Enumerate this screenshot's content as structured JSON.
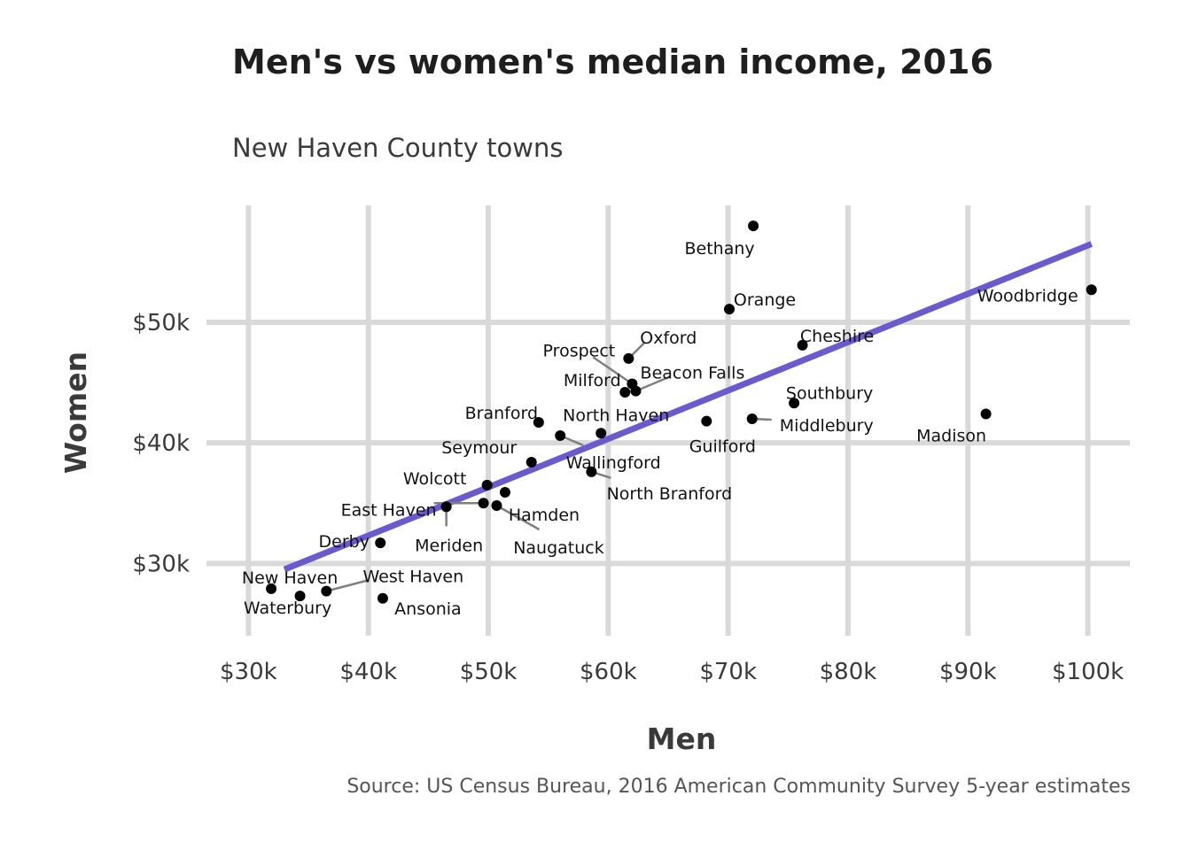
{
  "chart_data": {
    "type": "scatter",
    "title": "Men's vs women's median income, 2016",
    "subtitle": "New Haven County towns",
    "caption": "Source: US Census Bureau, 2016 American Community Survey 5-year estimates",
    "xlabel": "Men",
    "ylabel": "Women",
    "xlim": [
      26500,
      103500
    ],
    "ylim": [
      24000,
      59700
    ],
    "x_ticks": [
      {
        "value": 30000,
        "label": "$30k"
      },
      {
        "value": 40000,
        "label": "$40k"
      },
      {
        "value": 50000,
        "label": "$50k"
      },
      {
        "value": 60000,
        "label": "$60k"
      },
      {
        "value": 70000,
        "label": "$70k"
      },
      {
        "value": 80000,
        "label": "$80k"
      },
      {
        "value": 90000,
        "label": "$90k"
      },
      {
        "value": 100000,
        "label": "$100k"
      }
    ],
    "y_ticks": [
      {
        "value": 30000,
        "label": "$30k"
      },
      {
        "value": 40000,
        "label": "$40k"
      },
      {
        "value": 50000,
        "label": "$50k"
      }
    ],
    "grid": true,
    "trend_line": {
      "color": "#6a5acd",
      "x": [
        33000,
        100300
      ],
      "y": [
        29500,
        56500
      ]
    },
    "points": [
      {
        "name": "Bethany",
        "x": 72100,
        "y": 58000
      },
      {
        "name": "Woodbridge",
        "x": 100300,
        "y": 52700
      },
      {
        "name": "Orange",
        "x": 70100,
        "y": 51100
      },
      {
        "name": "Cheshire",
        "x": 76200,
        "y": 48100
      },
      {
        "name": "Oxford",
        "x": 61700,
        "y": 47000
      },
      {
        "name": "Beacon Falls",
        "x": 62300,
        "y": 44300
      },
      {
        "name": "Prospect",
        "x": 62000,
        "y": 44900
      },
      {
        "name": "Milford",
        "x": 61400,
        "y": 44200
      },
      {
        "name": "Southbury",
        "x": 75500,
        "y": 43300
      },
      {
        "name": "Madison",
        "x": 91500,
        "y": 42400
      },
      {
        "name": "Middlebury",
        "x": 72000,
        "y": 42000
      },
      {
        "name": "Guilford",
        "x": 68200,
        "y": 41800
      },
      {
        "name": "Branford",
        "x": 54200,
        "y": 41700
      },
      {
        "name": "North Haven",
        "x": 59400,
        "y": 40800
      },
      {
        "name": "Wallingford",
        "x": 56000,
        "y": 40600
      },
      {
        "name": "Seymour",
        "x": 53600,
        "y": 38400
      },
      {
        "name": "North Branford",
        "x": 58600,
        "y": 37600
      },
      {
        "name": "Wolcott",
        "x": 49900,
        "y": 36500
      },
      {
        "name": "Hamden",
        "x": 51400,
        "y": 35900
      },
      {
        "name": "Naugatuck",
        "x": 50700,
        "y": 34800
      },
      {
        "name": "East Haven",
        "x": 49600,
        "y": 35000
      },
      {
        "name": "Meriden",
        "x": 46500,
        "y": 34700
      },
      {
        "name": "Derby",
        "x": 41000,
        "y": 31700
      },
      {
        "name": "New Haven",
        "x": 31900,
        "y": 27900
      },
      {
        "name": "West Haven",
        "x": 36500,
        "y": 27700
      },
      {
        "name": "Waterbury",
        "x": 34300,
        "y": 27300
      },
      {
        "name": "Ansonia",
        "x": 41200,
        "y": 27100
      }
    ]
  }
}
